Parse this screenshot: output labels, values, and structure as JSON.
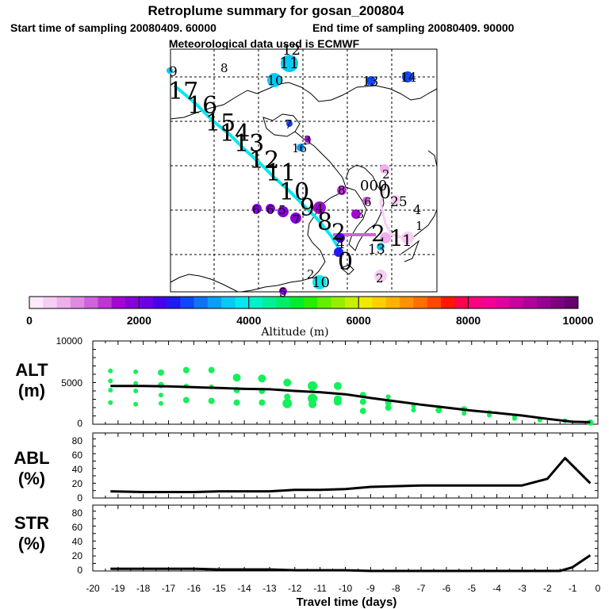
{
  "header": {
    "title": "Retroplume summary for gosan_200804",
    "start": "Start time of sampling 20080409. 60000",
    "end": "End time of sampling 20080409. 90000",
    "met": "Meteorological data used is ECMWF"
  },
  "colorbar": {
    "title": "Altitude  (m)",
    "ticks": [
      "0",
      "2000",
      "4000",
      "6000",
      "8000",
      "10000"
    ],
    "colors": [
      "#fde9fb",
      "#f7cef3",
      "#eeb0ec",
      "#e08be2",
      "#cf63db",
      "#bd35d5",
      "#a106d3",
      "#8400d8",
      "#6a00e3",
      "#4800ea",
      "#1f1bf2",
      "#1046f6",
      "#0e74f6",
      "#0a9ff6",
      "#0ac8f4",
      "#0ae6ef",
      "#00f2c9",
      "#00f09a",
      "#00ee67",
      "#00ec2f",
      "#27ee00",
      "#62ef00",
      "#98ee00",
      "#c8ee00",
      "#f0ea00",
      "#fed000",
      "#ffb300",
      "#ff9200",
      "#ff6e00",
      "#ff4800",
      "#ff1600",
      "#ff0050",
      "#ff0080",
      "#f20095",
      "#e0009c",
      "#c8009c",
      "#b0009a",
      "#940090",
      "#7d007e",
      "#66006c"
    ]
  },
  "map": {
    "labels": [
      {
        "t": "9",
        "x": 213,
        "y": 96,
        "s": 17,
        "c": "#000"
      },
      {
        "t": "8",
        "x": 278,
        "y": 91,
        "s": 15,
        "c": "#000"
      },
      {
        "t": "12",
        "x": 356,
        "y": 69,
        "s": 18,
        "c": "#000"
      },
      {
        "t": "11",
        "x": 352,
        "y": 86,
        "s": 20,
        "c": "#000"
      },
      {
        "t": "10",
        "x": 337,
        "y": 107,
        "s": 16,
        "c": "#000"
      },
      {
        "t": "13",
        "x": 457,
        "y": 108,
        "s": 16,
        "c": "#000"
      },
      {
        "t": "14",
        "x": 505,
        "y": 103,
        "s": 16,
        "c": "#000"
      },
      {
        "t": "17",
        "x": 212,
        "y": 125,
        "s": 30,
        "c": "#000"
      },
      {
        "t": "16",
        "x": 236,
        "y": 143,
        "s": 30,
        "c": "#000"
      },
      {
        "t": "15",
        "x": 259,
        "y": 165,
        "s": 30,
        "c": "#000"
      },
      {
        "t": "14",
        "x": 277,
        "y": 178,
        "s": 30,
        "c": "#000"
      },
      {
        "t": "13",
        "x": 295,
        "y": 191,
        "s": 30,
        "c": "#000"
      },
      {
        "t": "12",
        "x": 314,
        "y": 212,
        "s": 30,
        "c": "#000"
      },
      {
        "t": "11",
        "x": 335,
        "y": 228,
        "s": 30,
        "c": "#000"
      },
      {
        "t": "10",
        "x": 352,
        "y": 252,
        "s": 30,
        "c": "#000"
      },
      {
        "t": "9",
        "x": 378,
        "y": 272,
        "s": 30,
        "c": "#000"
      },
      {
        "t": "8",
        "x": 400,
        "y": 290,
        "s": 30,
        "c": "#000"
      },
      {
        "t": "7",
        "x": 359,
        "y": 162,
        "s": 15,
        "c": "#000"
      },
      {
        "t": "3",
        "x": 383,
        "y": 182,
        "s": 15,
        "c": "#000"
      },
      {
        "t": "16",
        "x": 368,
        "y": 192,
        "s": 15,
        "c": "#000"
      },
      {
        "t": "8",
        "x": 426,
        "y": 245,
        "s": 15,
        "c": "#000"
      },
      {
        "t": "000",
        "x": 454,
        "y": 240,
        "s": 18,
        "c": "#000"
      },
      {
        "t": "0",
        "x": 478,
        "y": 250,
        "s": 24,
        "c": "#000"
      },
      {
        "t": "2",
        "x": 482,
        "y": 225,
        "s": 15,
        "c": "#000"
      },
      {
        "t": "25",
        "x": 492,
        "y": 260,
        "s": 17,
        "c": "#000"
      },
      {
        "t": "6",
        "x": 459,
        "y": 260,
        "s": 15,
        "c": "#000"
      },
      {
        "t": "4",
        "x": 521,
        "y": 270,
        "s": 16,
        "c": "#000"
      },
      {
        "t": "1",
        "x": 524,
        "y": 290,
        "s": 15,
        "c": "#000"
      },
      {
        "t": "6",
        "x": 318,
        "y": 270,
        "s": 15,
        "c": "#000"
      },
      {
        "t": "6",
        "x": 336,
        "y": 270,
        "s": 15,
        "c": "#000"
      },
      {
        "t": "5",
        "x": 351,
        "y": 270,
        "s": 15,
        "c": "#000"
      },
      {
        "t": "7",
        "x": 369,
        "y": 282,
        "s": 15,
        "c": "#000"
      },
      {
        "t": "4",
        "x": 398,
        "y": 268,
        "s": 15,
        "c": "#000"
      },
      {
        "t": "3",
        "x": 450,
        "y": 275,
        "s": 14,
        "c": "#000"
      },
      {
        "t": "2",
        "x": 418,
        "y": 302,
        "s": 28,
        "c": "#000"
      },
      {
        "t": "4",
        "x": 424,
        "y": 313,
        "s": 17,
        "c": "#000"
      },
      {
        "t": "2",
        "x": 468,
        "y": 304,
        "s": 28,
        "c": "#000"
      },
      {
        "t": "1",
        "x": 491,
        "y": 310,
        "s": 28,
        "c": "#000"
      },
      {
        "t": "1",
        "x": 507,
        "y": 310,
        "s": 20,
        "c": "#000"
      },
      {
        "t": "13",
        "x": 464,
        "y": 320,
        "s": 17,
        "c": "#000"
      },
      {
        "t": "0",
        "x": 426,
        "y": 340,
        "s": 30,
        "c": "#000"
      },
      {
        "t": "2",
        "x": 387,
        "y": 351,
        "s": 15,
        "c": "#000"
      },
      {
        "t": "10",
        "x": 393,
        "y": 362,
        "s": 18,
        "c": "#000"
      },
      {
        "t": "2",
        "x": 474,
        "y": 356,
        "s": 15,
        "c": "#000"
      },
      {
        "t": "5",
        "x": 352,
        "y": 374,
        "s": 15,
        "c": "#000"
      }
    ]
  },
  "panels": {
    "alt": {
      "label1": "ALT",
      "label2": "(m)",
      "yticks": [
        "10000",
        "5000",
        "0"
      ]
    },
    "abl": {
      "label1": "ABL",
      "label2": "(%)",
      "yticks": [
        "80",
        "60",
        "40",
        "20",
        "0"
      ]
    },
    "str": {
      "label1": "STR",
      "label2": "(%)",
      "yticks": [
        "80",
        "60",
        "40",
        "20",
        "0"
      ]
    }
  },
  "chart_data": {
    "type": "line",
    "xlabel": "Travel time (days)",
    "xlim": [
      -20,
      0
    ],
    "x_ticks": [
      -20,
      -19,
      -18,
      -17,
      -16,
      -15,
      -14,
      -13,
      -12,
      -11,
      -10,
      -9,
      -8,
      -7,
      -6,
      -5,
      -4,
      -3,
      -2,
      -1,
      0
    ],
    "panels": [
      {
        "name": "ALT",
        "ylabel": "ALT (m)",
        "ylim": [
          0,
          10000
        ],
        "series": [
          {
            "name": "mean altitude",
            "x": [
              -19.3,
              -18,
              -17,
              -16,
              -15,
              -14,
              -13,
              -12,
              -11,
              -10,
              -9,
              -8,
              -7,
              -6,
              -5,
              -4,
              -3,
              -2,
              -1,
              -0.3
            ],
            "y": [
              4600,
              4600,
              4550,
              4450,
              4350,
              4250,
              4200,
              4000,
              3850,
              3600,
              3150,
              2750,
              2350,
              2000,
              1650,
              1350,
              1050,
              650,
              300,
              250
            ]
          }
        ],
        "scatter": {
          "x": [
            -19.3,
            -19.3,
            -19.3,
            -19.3,
            -18.3,
            -18.3,
            -18.3,
            -18.3,
            -17.3,
            -17.3,
            -17.3,
            -17.3,
            -16.3,
            -16.3,
            -16.3,
            -15.3,
            -15.3,
            -15.3,
            -14.3,
            -14.3,
            -14.3,
            -13.3,
            -13.3,
            -13.3,
            -12.3,
            -12.3,
            -12.3,
            -11.3,
            -11.3,
            -11.3,
            -10.3,
            -10.3,
            -10.3,
            -9.3,
            -9.3,
            -9.3,
            -8.3,
            -8.3,
            -8.3,
            -7.3,
            -7.3,
            -6.3,
            -6.3,
            -5.3,
            -5.3,
            -4.3,
            -4.3,
            -3.3,
            -3.3,
            -2.3,
            -1.3,
            -0.3
          ],
          "y": [
            6400,
            5200,
            4100,
            2600,
            6300,
            4900,
            4000,
            2400,
            6200,
            4700,
            3500,
            2500,
            6500,
            4600,
            2900,
            6500,
            4500,
            2800,
            5600,
            4100,
            2600,
            5500,
            4000,
            2600,
            5000,
            3300,
            2500,
            4600,
            3100,
            2400,
            4600,
            3000,
            2700,
            3500,
            2700,
            1600,
            3300,
            2600,
            2000,
            2200,
            1700,
            2000,
            1700,
            1800,
            1300,
            1400,
            1100,
            1000,
            700,
            500,
            400,
            200
          ],
          "size": [
            3,
            3,
            3,
            3,
            3,
            3,
            3,
            3,
            4,
            4,
            3,
            3,
            4,
            3,
            4,
            4,
            3,
            4,
            5,
            4,
            4,
            5,
            4,
            4,
            5,
            4,
            6,
            6,
            6,
            5,
            5,
            5,
            5,
            4,
            4,
            4,
            3,
            4,
            4,
            3,
            3,
            3,
            4,
            4,
            3,
            3,
            3,
            3,
            3,
            3,
            3,
            4
          ],
          "color": "#14f05a"
        }
      },
      {
        "name": "ABL",
        "ylabel": "ABL (%)",
        "ylim": [
          0,
          90
        ],
        "series": [
          {
            "name": "ABL fraction",
            "x": [
              -19.3,
              -18,
              -17,
              -16,
              -15,
              -14,
              -13,
              -12,
              -11,
              -10,
              -9,
              -8,
              -7,
              -6,
              -5,
              -4,
              -3,
              -2,
              -1.3,
              -0.3
            ],
            "y": [
              9,
              8,
              8,
              8,
              9,
              9,
              9,
              11,
              11,
              12,
              15,
              16,
              17,
              17,
              17,
              17,
              17,
              26,
              54,
              20
            ]
          }
        ]
      },
      {
        "name": "STR",
        "ylabel": "STR (%)",
        "ylim": [
          0,
          90
        ],
        "series": [
          {
            "name": "STR fraction",
            "x": [
              -19.3,
              -18,
              -17,
              -16,
              -15,
              -14,
              -13,
              -12,
              -11,
              -10,
              -9,
              -8,
              -7,
              -6,
              -5,
              -4,
              -3,
              -2,
              -1.5,
              -1.0,
              -0.3
            ],
            "y": [
              3,
              3,
              3,
              3,
              2,
              2,
              2,
              1,
              1,
              1,
              0,
              0,
              0,
              0,
              0,
              0,
              0,
              0,
              0,
              5,
              21
            ]
          }
        ]
      }
    ]
  }
}
